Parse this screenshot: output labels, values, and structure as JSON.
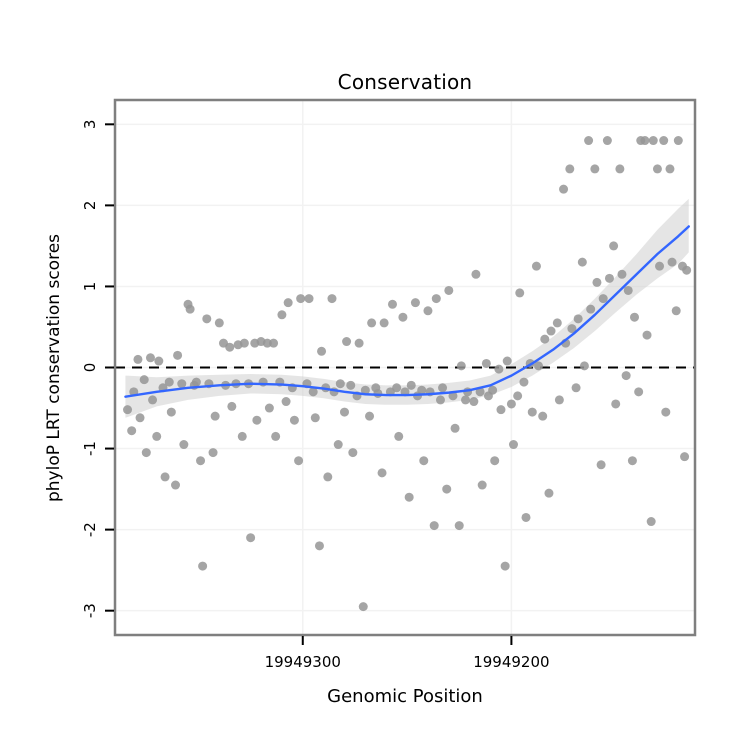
{
  "chart_data": {
    "type": "scatter",
    "title": "Conservation",
    "xlabel": "Genomic Position",
    "ylabel": "phyloP LRT conservation scores",
    "x_axis": {
      "ticks": [
        19949300,
        19949200
      ],
      "range": [
        19949390,
        19949112
      ],
      "reversed": true
    },
    "y_axis": {
      "ticks": [
        -3,
        -2,
        -1,
        0,
        1,
        2,
        3
      ],
      "range": [
        -3.3,
        3.3
      ]
    },
    "reference_line_y": 0,
    "legend": "none",
    "grid": "faint",
    "colors": {
      "point": "#959595",
      "smooth_line": "#3366FF",
      "ribbon": "#cfcfcf",
      "reference_line": "#000000",
      "panel_border": "#7f7f7f",
      "grid": "#f2f2f2",
      "background": "#ffffff"
    },
    "points": [
      [
        19949384,
        -0.52
      ],
      [
        19949382,
        -0.78
      ],
      [
        19949381,
        -0.3
      ],
      [
        19949379,
        0.1
      ],
      [
        19949378,
        -0.62
      ],
      [
        19949376,
        -0.15
      ],
      [
        19949375,
        -1.05
      ],
      [
        19949373,
        0.12
      ],
      [
        19949372,
        -0.4
      ],
      [
        19949370,
        -0.85
      ],
      [
        19949369,
        0.08
      ],
      [
        19949367,
        -0.25
      ],
      [
        19949366,
        -1.35
      ],
      [
        19949364,
        -0.18
      ],
      [
        19949363,
        -0.55
      ],
      [
        19949361,
        -1.45
      ],
      [
        19949360,
        0.15
      ],
      [
        19949358,
        -0.2
      ],
      [
        19949357,
        -0.95
      ],
      [
        19949355,
        0.78
      ],
      [
        19949354,
        0.72
      ],
      [
        19949352,
        -0.22
      ],
      [
        19949351,
        -0.18
      ],
      [
        19949349,
        -1.15
      ],
      [
        19949348,
        -2.45
      ],
      [
        19949346,
        0.6
      ],
      [
        19949345,
        -0.2
      ],
      [
        19949343,
        -1.05
      ],
      [
        19949342,
        -0.6
      ],
      [
        19949340,
        0.55
      ],
      [
        19949338,
        0.3
      ],
      [
        19949337,
        -0.22
      ],
      [
        19949335,
        0.25
      ],
      [
        19949334,
        -0.48
      ],
      [
        19949332,
        -0.2
      ],
      [
        19949331,
        0.28
      ],
      [
        19949329,
        -0.85
      ],
      [
        19949328,
        0.3
      ],
      [
        19949326,
        -0.2
      ],
      [
        19949325,
        -2.1
      ],
      [
        19949323,
        0.3
      ],
      [
        19949322,
        -0.65
      ],
      [
        19949320,
        0.32
      ],
      [
        19949319,
        -0.18
      ],
      [
        19949317,
        0.3
      ],
      [
        19949316,
        -0.5
      ],
      [
        19949314,
        0.3
      ],
      [
        19949313,
        -0.85
      ],
      [
        19949311,
        -0.18
      ],
      [
        19949310,
        0.65
      ],
      [
        19949308,
        -0.42
      ],
      [
        19949307,
        0.8
      ],
      [
        19949305,
        -0.25
      ],
      [
        19949304,
        -0.65
      ],
      [
        19949302,
        -1.15
      ],
      [
        19949301,
        0.85
      ],
      [
        19949298,
        -0.2
      ],
      [
        19949297,
        0.85
      ],
      [
        19949295,
        -0.3
      ],
      [
        19949294,
        -0.62
      ],
      [
        19949292,
        -2.2
      ],
      [
        19949291,
        0.2
      ],
      [
        19949289,
        -0.25
      ],
      [
        19949288,
        -1.35
      ],
      [
        19949286,
        0.85
      ],
      [
        19949285,
        -0.3
      ],
      [
        19949283,
        -0.95
      ],
      [
        19949282,
        -0.2
      ],
      [
        19949280,
        -0.55
      ],
      [
        19949279,
        0.32
      ],
      [
        19949277,
        -0.22
      ],
      [
        19949276,
        -1.05
      ],
      [
        19949274,
        -0.35
      ],
      [
        19949273,
        0.3
      ],
      [
        19949271,
        -2.95
      ],
      [
        19949270,
        -0.28
      ],
      [
        19949268,
        -0.6
      ],
      [
        19949267,
        0.55
      ],
      [
        19949265,
        -0.25
      ],
      [
        19949264,
        -0.32
      ],
      [
        19949262,
        -1.3
      ],
      [
        19949261,
        0.55
      ],
      [
        19949258,
        -0.3
      ],
      [
        19949257,
        0.78
      ],
      [
        19949255,
        -0.25
      ],
      [
        19949254,
        -0.85
      ],
      [
        19949252,
        0.62
      ],
      [
        19949251,
        -0.3
      ],
      [
        19949249,
        -1.6
      ],
      [
        19949248,
        -0.22
      ],
      [
        19949246,
        0.8
      ],
      [
        19949245,
        -0.35
      ],
      [
        19949243,
        -0.28
      ],
      [
        19949242,
        -1.15
      ],
      [
        19949240,
        0.7
      ],
      [
        19949239,
        -0.3
      ],
      [
        19949237,
        -1.95
      ],
      [
        19949236,
        0.85
      ],
      [
        19949234,
        -0.4
      ],
      [
        19949233,
        -0.25
      ],
      [
        19949231,
        -1.5
      ],
      [
        19949230,
        0.95
      ],
      [
        19949228,
        -0.35
      ],
      [
        19949227,
        -0.75
      ],
      [
        19949225,
        -1.95
      ],
      [
        19949224,
        0.02
      ],
      [
        19949222,
        -0.4
      ],
      [
        19949221,
        -0.3
      ],
      [
        19949218,
        -0.42
      ],
      [
        19949217,
        1.15
      ],
      [
        19949215,
        -0.3
      ],
      [
        19949214,
        -1.45
      ],
      [
        19949212,
        0.05
      ],
      [
        19949211,
        -0.35
      ],
      [
        19949209,
        -0.28
      ],
      [
        19949208,
        -1.15
      ],
      [
        19949206,
        -0.02
      ],
      [
        19949205,
        -0.52
      ],
      [
        19949203,
        -2.45
      ],
      [
        19949202,
        0.08
      ],
      [
        19949200,
        -0.45
      ],
      [
        19949199,
        -0.95
      ],
      [
        19949197,
        -0.35
      ],
      [
        19949196,
        0.92
      ],
      [
        19949194,
        -0.18
      ],
      [
        19949193,
        -1.85
      ],
      [
        19949191,
        0.05
      ],
      [
        19949190,
        -0.55
      ],
      [
        19949188,
        1.25
      ],
      [
        19949187,
        0.02
      ],
      [
        19949185,
        -0.6
      ],
      [
        19949184,
        0.35
      ],
      [
        19949182,
        -1.55
      ],
      [
        19949181,
        0.45
      ],
      [
        19949178,
        0.55
      ],
      [
        19949177,
        -0.4
      ],
      [
        19949175,
        2.2
      ],
      [
        19949174,
        0.3
      ],
      [
        19949172,
        2.45
      ],
      [
        19949171,
        0.48
      ],
      [
        19949169,
        -0.25
      ],
      [
        19949168,
        0.6
      ],
      [
        19949166,
        1.3
      ],
      [
        19949165,
        0.02
      ],
      [
        19949163,
        2.8
      ],
      [
        19949162,
        0.72
      ],
      [
        19949160,
        2.45
      ],
      [
        19949159,
        1.05
      ],
      [
        19949157,
        -1.2
      ],
      [
        19949156,
        0.85
      ],
      [
        19949154,
        2.8
      ],
      [
        19949153,
        1.1
      ],
      [
        19949151,
        1.5
      ],
      [
        19949150,
        -0.45
      ],
      [
        19949148,
        2.45
      ],
      [
        19949147,
        1.15
      ],
      [
        19949145,
        -0.1
      ],
      [
        19949144,
        0.95
      ],
      [
        19949142,
        -1.15
      ],
      [
        19949141,
        0.62
      ],
      [
        19949139,
        -0.3
      ],
      [
        19949138,
        2.8
      ],
      [
        19949136,
        2.8
      ],
      [
        19949135,
        0.4
      ],
      [
        19949133,
        -1.9
      ],
      [
        19949132,
        2.8
      ],
      [
        19949130,
        2.45
      ],
      [
        19949129,
        1.25
      ],
      [
        19949127,
        2.8
      ],
      [
        19949126,
        -0.55
      ],
      [
        19949124,
        2.45
      ],
      [
        19949123,
        1.3
      ],
      [
        19949121,
        0.7
      ],
      [
        19949120,
        2.8
      ],
      [
        19949118,
        1.25
      ],
      [
        19949117,
        -1.1
      ],
      [
        19949116,
        1.2
      ]
    ],
    "smooth": [
      [
        19949385,
        -0.36,
        -0.62,
        -0.1
      ],
      [
        19949370,
        -0.3,
        -0.48,
        -0.12
      ],
      [
        19949355,
        -0.25,
        -0.4,
        -0.1
      ],
      [
        19949340,
        -0.22,
        -0.35,
        -0.09
      ],
      [
        19949325,
        -0.2,
        -0.32,
        -0.08
      ],
      [
        19949310,
        -0.21,
        -0.33,
        -0.09
      ],
      [
        19949300,
        -0.23,
        -0.35,
        -0.11
      ],
      [
        19949290,
        -0.26,
        -0.38,
        -0.14
      ],
      [
        19949280,
        -0.3,
        -0.42,
        -0.18
      ],
      [
        19949270,
        -0.33,
        -0.45,
        -0.21
      ],
      [
        19949260,
        -0.34,
        -0.46,
        -0.22
      ],
      [
        19949250,
        -0.34,
        -0.46,
        -0.22
      ],
      [
        19949240,
        -0.33,
        -0.45,
        -0.21
      ],
      [
        19949230,
        -0.31,
        -0.43,
        -0.19
      ],
      [
        19949220,
        -0.28,
        -0.4,
        -0.16
      ],
      [
        19949210,
        -0.22,
        -0.34,
        -0.1
      ],
      [
        19949200,
        -0.1,
        -0.24,
        0.04
      ],
      [
        19949190,
        0.05,
        -0.1,
        0.2
      ],
      [
        19949180,
        0.22,
        0.06,
        0.38
      ],
      [
        19949170,
        0.42,
        0.24,
        0.6
      ],
      [
        19949160,
        0.65,
        0.45,
        0.85
      ],
      [
        19949150,
        0.9,
        0.68,
        1.12
      ],
      [
        19949140,
        1.15,
        0.9,
        1.4
      ],
      [
        19949130,
        1.4,
        1.1,
        1.7
      ],
      [
        19949120,
        1.62,
        1.28,
        1.96
      ],
      [
        19949115,
        1.74,
        1.42,
        2.08
      ]
    ]
  }
}
